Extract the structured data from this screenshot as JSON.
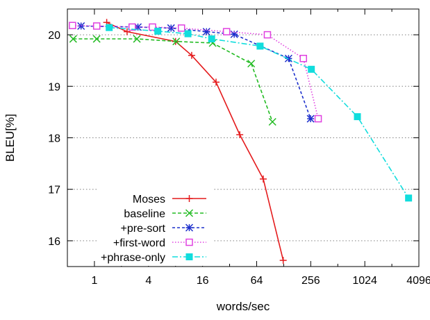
{
  "chart_data": {
    "type": "line",
    "title": "",
    "xlabel": "words/sec",
    "ylabel": "BLEU[%]",
    "x_scale": "log2",
    "xlim": [
      0.5,
      4096
    ],
    "ylim": [
      15.5,
      20.5
    ],
    "x_ticks": [
      1,
      4,
      16,
      64,
      256,
      1024,
      4096
    ],
    "x_tick_labels": [
      "1",
      "4",
      "16",
      "64",
      "256",
      "1024",
      "4096"
    ],
    "y_ticks": [
      16,
      17,
      18,
      19,
      20
    ],
    "y_tick_labels": [
      "16",
      "17",
      "18",
      "19",
      "20"
    ],
    "grid": "dotted horizontal at y ticks",
    "legend_position": "bottom-left",
    "series": [
      {
        "name": "Moses",
        "color": "#e41a1c",
        "dash": "solid",
        "marker": "plus",
        "x": [
          1.37,
          2.31,
          8.0,
          12.1,
          22.6,
          41.5,
          75.8,
          126.4
        ],
        "y": [
          20.24,
          20.06,
          19.87,
          19.6,
          19.08,
          18.06,
          17.2,
          15.62
        ]
      },
      {
        "name": "baseline",
        "color": "#22bb22",
        "dash": "dashed",
        "marker": "x",
        "x": [
          0.58,
          1.06,
          2.97,
          8.15,
          20.7,
          55.7,
          96.0
        ],
        "y": [
          19.92,
          19.92,
          19.92,
          19.87,
          19.84,
          19.44,
          18.31
        ]
      },
      {
        "name": "+pre-sort",
        "color": "#1c2fcc",
        "dash": "dotted-dashed",
        "marker": "star",
        "x": [
          0.71,
          3.05,
          7.13,
          17.7,
          36.0,
          145.0,
          255.0
        ],
        "y": [
          20.17,
          20.15,
          20.13,
          20.06,
          20.01,
          19.54,
          18.37
        ]
      },
      {
        "name": "+first-word",
        "color": "#e040e0",
        "dash": "dotted",
        "marker": "square-open",
        "x": [
          0.57,
          1.06,
          2.63,
          4.43,
          9.31,
          29.6,
          84.3,
          212.0,
          310.0
        ],
        "y": [
          20.18,
          20.17,
          20.15,
          20.15,
          20.13,
          20.06,
          20.0,
          19.54,
          18.37
        ]
      },
      {
        "name": "+phrase-only",
        "color": "#11dddd",
        "dash": "dash-dot",
        "marker": "square-filled",
        "x": [
          1.46,
          5.08,
          11.0,
          20.2,
          69.9,
          260.0,
          847.0,
          3144.0
        ],
        "y": [
          20.14,
          20.07,
          20.02,
          19.92,
          19.78,
          19.33,
          18.41,
          16.83
        ]
      }
    ]
  }
}
